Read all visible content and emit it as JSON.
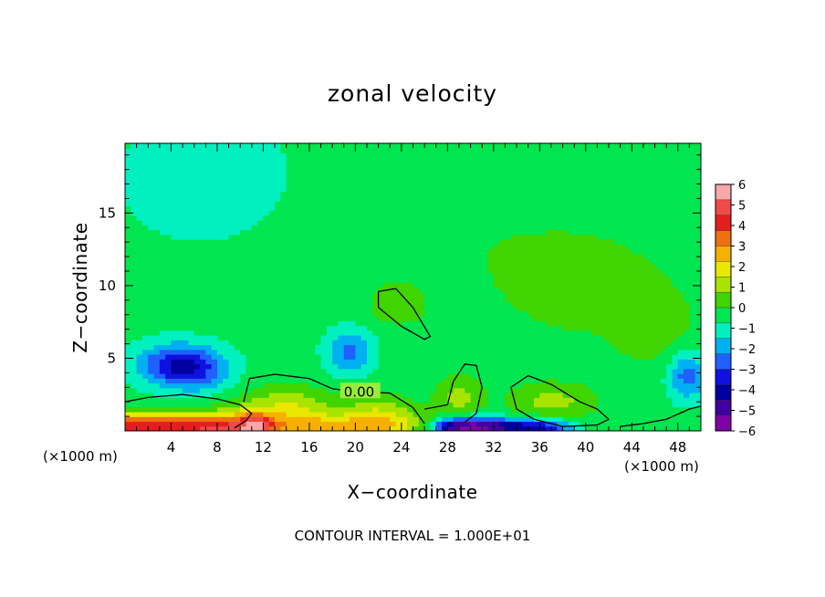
{
  "chart_data": {
    "type": "heatmap",
    "title": "zonal velocity",
    "xlabel": "X−coordinate",
    "ylabel": "Z−coordinate",
    "x_unit_left": "(×1000 m)",
    "x_unit_right": "(×1000 m)",
    "footer": "CONTOUR INTERVAL = 1.000E+01",
    "xlim": [
      0,
      50
    ],
    "ylim": [
      0,
      19.8
    ],
    "x_ticks": [
      4,
      8,
      12,
      16,
      20,
      24,
      28,
      32,
      36,
      40,
      44,
      48
    ],
    "y_ticks": [
      5,
      10,
      15
    ],
    "contour_label": "0.00",
    "colorbar": {
      "ticks": [
        "6",
        "5",
        "4",
        "3",
        "2",
        "1",
        "0",
        "−1",
        "−2",
        "−3",
        "−4",
        "−5",
        "−6"
      ],
      "colors": [
        "#f7a8a8",
        "#f04a4a",
        "#e41e1e",
        "#ef7010",
        "#f7b000",
        "#e8e800",
        "#a8e400",
        "#40d400",
        "#00e650",
        "#00f0c0",
        "#00b0f0",
        "#1f60ff",
        "#1010e0",
        "#0000a0",
        "#4000a0",
        "#8000a8"
      ]
    },
    "background_value": -0.5,
    "features": [
      {
        "kind": "gaussian",
        "x": 4.5,
        "y": 4.6,
        "sx": 2.4,
        "sy": 1.0,
        "amp": -3.0
      },
      {
        "kind": "gaussian",
        "x": 6.5,
        "y": 4.0,
        "sx": 2.0,
        "sy": 1.0,
        "amp": -1.2
      },
      {
        "kind": "gaussian",
        "x": 19.5,
        "y": 5.5,
        "sx": 1.4,
        "sy": 1.1,
        "amp": -2.0
      },
      {
        "kind": "gaussian",
        "x": 48.8,
        "y": 3.8,
        "sx": 1.2,
        "sy": 1.2,
        "amp": -2.2
      },
      {
        "kind": "gaussian",
        "x": 14.0,
        "y": 1.6,
        "sx": 3.0,
        "sy": 1.0,
        "amp": 2.0
      },
      {
        "kind": "gaussian",
        "x": 22.0,
        "y": 1.3,
        "sx": 2.2,
        "sy": 0.9,
        "amp": 1.6
      },
      {
        "kind": "gaussian",
        "x": 29.0,
        "y": 2.3,
        "sx": 1.4,
        "sy": 1.0,
        "amp": 1.4
      },
      {
        "kind": "gaussian",
        "x": 37.0,
        "y": 2.0,
        "sx": 2.5,
        "sy": 0.8,
        "amp": 1.4
      },
      {
        "kind": "gaussian",
        "x": 23.5,
        "y": 8.7,
        "sx": 1.6,
        "sy": 0.9,
        "amp": 1.0
      },
      {
        "kind": "gaussian",
        "x": 46.0,
        "y": 7.0,
        "sx": 2.0,
        "sy": 1.5,
        "amp": 0.6
      },
      {
        "kind": "gaussian",
        "x": 7.0,
        "y": 17.5,
        "sx": 5.0,
        "sy": 3.0,
        "amp": -0.8
      },
      {
        "kind": "gaussian",
        "x": 40.0,
        "y": 10.0,
        "sx": 10.0,
        "sy": 5.0,
        "amp": 0.6
      },
      {
        "kind": "gaussian",
        "x": 25.0,
        "y": 14.0,
        "sx": 8.0,
        "sy": 3.0,
        "amp": 0.2
      },
      {
        "kind": "gaussian",
        "x": 30.0,
        "y": 0.3,
        "sx": 3.0,
        "sy": 0.45,
        "amp": -5.5
      },
      {
        "kind": "gaussian",
        "x": 36.0,
        "y": 0.25,
        "sx": 2.0,
        "sy": 0.4,
        "amp": -3.0
      },
      {
        "kind": "band",
        "y": 0.25,
        "sy": 0.7,
        "x0": 0,
        "x1": 11,
        "amp": 5.0
      },
      {
        "kind": "band",
        "y": 0.3,
        "sy": 0.6,
        "x0": 12,
        "x1": 26,
        "amp": 2.5
      }
    ],
    "contours": [
      [
        [
          0,
          2.0
        ],
        [
          2,
          2.3
        ],
        [
          5,
          2.5
        ],
        [
          8,
          2.2
        ],
        [
          10,
          1.8
        ],
        [
          11,
          1.2
        ],
        [
          10.5,
          0.7
        ],
        [
          9.5,
          0.2
        ]
      ],
      [
        [
          10.3,
          2.0
        ],
        [
          10.8,
          3.6
        ],
        [
          13,
          3.9
        ],
        [
          16,
          3.6
        ],
        [
          18,
          2.9
        ],
        [
          20,
          2.7
        ],
        [
          23,
          2.6
        ],
        [
          25,
          1.6
        ],
        [
          26,
          0.5
        ]
      ],
      [
        [
          26,
          1.5
        ],
        [
          28,
          1.8
        ],
        [
          28.5,
          3.4
        ],
        [
          29.5,
          4.6
        ],
        [
          30.5,
          4.5
        ],
        [
          31,
          3.0
        ],
        [
          30.5,
          1.2
        ],
        [
          29.5,
          0.6
        ]
      ],
      [
        [
          33.5,
          3.0
        ],
        [
          35,
          3.8
        ],
        [
          37,
          3.2
        ],
        [
          39.5,
          2.0
        ],
        [
          41,
          1.5
        ],
        [
          42,
          0.8
        ],
        [
          41,
          0.4
        ],
        [
          38,
          0.3
        ],
        [
          35.5,
          0.8
        ],
        [
          34,
          1.5
        ],
        [
          33.5,
          3.0
        ]
      ],
      [
        [
          22,
          9.6
        ],
        [
          23.5,
          9.8
        ],
        [
          25,
          8.5
        ],
        [
          26.5,
          6.5
        ],
        [
          26,
          6.3
        ],
        [
          24,
          7.2
        ],
        [
          22,
          8.5
        ],
        [
          22,
          9.6
        ]
      ],
      [
        [
          43,
          0.3
        ],
        [
          45,
          0.5
        ],
        [
          47,
          0.8
        ],
        [
          49,
          1.5
        ],
        [
          50,
          1.7
        ]
      ]
    ]
  }
}
